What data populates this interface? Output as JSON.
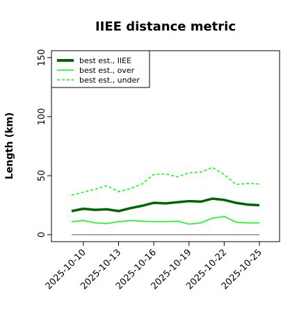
{
  "chart_data": {
    "type": "line",
    "title": "IIEE distance metric",
    "xlabel": "",
    "ylabel": "Length (km)",
    "x": [
      "2025-10-09",
      "2025-10-10",
      "2025-10-11",
      "2025-10-12",
      "2025-10-13",
      "2025-10-14",
      "2025-10-15",
      "2025-10-16",
      "2025-10-17",
      "2025-10-18",
      "2025-10-19",
      "2025-10-20",
      "2025-10-21",
      "2025-10-22",
      "2025-10-23",
      "2025-10-24",
      "2025-10-25"
    ],
    "x_tick_labels": [
      "2025-10-10",
      "2025-10-13",
      "2025-10-16",
      "2025-10-19",
      "2025-10-22",
      "2025-10-25"
    ],
    "ylim": [
      -5,
      158
    ],
    "y_ticks": [
      0,
      50,
      100,
      150
    ],
    "grid": false,
    "legend_position": "top-left",
    "series": [
      {
        "name": "best est., IIEE",
        "color": "#006400",
        "style": "solid-thick",
        "values": [
          20,
          22,
          21,
          21.5,
          20,
          22.5,
          24.5,
          27,
          26.5,
          27.5,
          28.5,
          28,
          30.5,
          29.5,
          27,
          25.5,
          25
        ]
      },
      {
        "name": "best est., over",
        "color": "#00ff00",
        "style": "solid",
        "values": [
          11,
          12,
          10,
          9.5,
          11,
          12,
          11.5,
          11,
          11,
          11.5,
          9,
          10,
          14,
          15.5,
          10.5,
          10,
          10
        ]
      },
      {
        "name": "best est., under",
        "color": "#00ff00",
        "style": "dashed",
        "values": [
          33.5,
          36,
          38.5,
          41.5,
          36.5,
          39,
          43,
          51,
          51.5,
          49,
          52.5,
          53,
          57,
          51,
          42.5,
          43.5,
          43
        ]
      },
      {
        "name": "",
        "color": "#555555",
        "style": "solid-thin",
        "values": [
          0,
          0,
          0,
          0,
          0,
          0,
          0,
          0,
          0,
          0,
          0,
          0,
          0,
          0,
          0,
          0,
          0
        ]
      }
    ]
  }
}
